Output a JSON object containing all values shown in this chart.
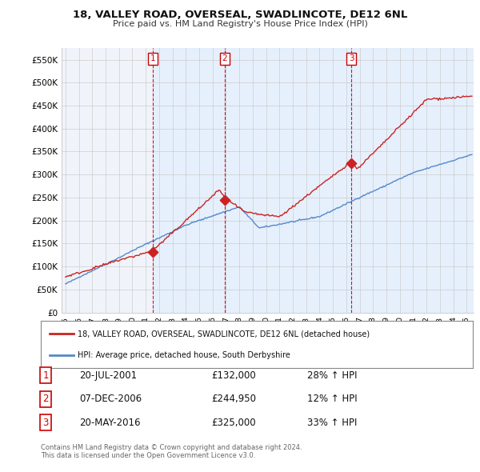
{
  "title": "18, VALLEY ROAD, OVERSEAL, SWADLINCOTE, DE12 6NL",
  "subtitle": "Price paid vs. HM Land Registry's House Price Index (HPI)",
  "ylabel_ticks": [
    "£0",
    "£50K",
    "£100K",
    "£150K",
    "£200K",
    "£250K",
    "£300K",
    "£350K",
    "£400K",
    "£450K",
    "£500K",
    "£550K"
  ],
  "ytick_values": [
    0,
    50000,
    100000,
    150000,
    200000,
    250000,
    300000,
    350000,
    400000,
    450000,
    500000,
    550000
  ],
  "ylim": [
    0,
    575000
  ],
  "xlim_start": 1994.7,
  "xlim_end": 2025.5,
  "sale_dates": [
    2001.55,
    2006.92,
    2016.38
  ],
  "sale_prices": [
    132000,
    244950,
    325000
  ],
  "sale_labels": [
    "1",
    "2",
    "3"
  ],
  "vline_color": "#cc0000",
  "property_line_color": "#cc2222",
  "hpi_line_color": "#5588cc",
  "shade_color": "#ddeeff",
  "legend_property": "18, VALLEY ROAD, OVERSEAL, SWADLINCOTE, DE12 6NL (detached house)",
  "legend_hpi": "HPI: Average price, detached house, South Derbyshire",
  "table_rows": [
    [
      "1",
      "20-JUL-2001",
      "£132,000",
      "28% ↑ HPI"
    ],
    [
      "2",
      "07-DEC-2006",
      "£244,950",
      "12% ↑ HPI"
    ],
    [
      "3",
      "20-MAY-2016",
      "£325,000",
      "33% ↑ HPI"
    ]
  ],
  "footer": "Contains HM Land Registry data © Crown copyright and database right 2024.\nThis data is licensed under the Open Government Licence v3.0.",
  "bg_color": "#ffffff",
  "grid_color": "#cccccc",
  "plot_bg_color": "#f0f4fa"
}
